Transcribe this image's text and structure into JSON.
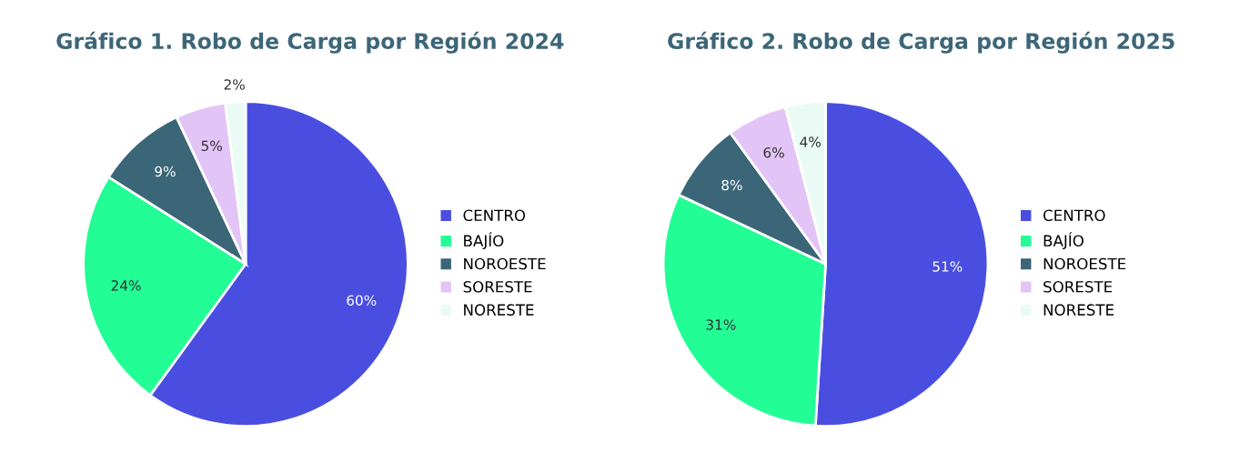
{
  "chart_data": [
    {
      "type": "pie",
      "title": "Gráfico 1. Robo de Carga por Región 2024",
      "categories": [
        "CENTRO",
        "BAJÍO",
        "NOROESTE",
        "SORESTE",
        "NORESTE"
      ],
      "values": [
        60,
        24,
        9,
        5,
        2
      ],
      "value_labels": [
        "60%",
        "24%",
        "9%",
        "5%",
        "2%"
      ],
      "colors": [
        "#4a4ee0",
        "#22fd95",
        "#3b6677",
        "#e2c4f6",
        "#e9fbf4"
      ],
      "legend": "right"
    },
    {
      "type": "pie",
      "title": "Gráfico 2. Robo de Carga por Región 2025",
      "categories": [
        "CENTRO",
        "BAJÍO",
        "NOROESTE",
        "SORESTE",
        "NORESTE"
      ],
      "values": [
        51,
        31,
        8,
        6,
        4
      ],
      "value_labels": [
        "51%",
        "31%",
        "8%",
        "6%",
        "4%"
      ],
      "colors": [
        "#4a4ee0",
        "#22fd95",
        "#3b6677",
        "#e2c4f6",
        "#e9fbf4"
      ],
      "legend": "right"
    }
  ]
}
